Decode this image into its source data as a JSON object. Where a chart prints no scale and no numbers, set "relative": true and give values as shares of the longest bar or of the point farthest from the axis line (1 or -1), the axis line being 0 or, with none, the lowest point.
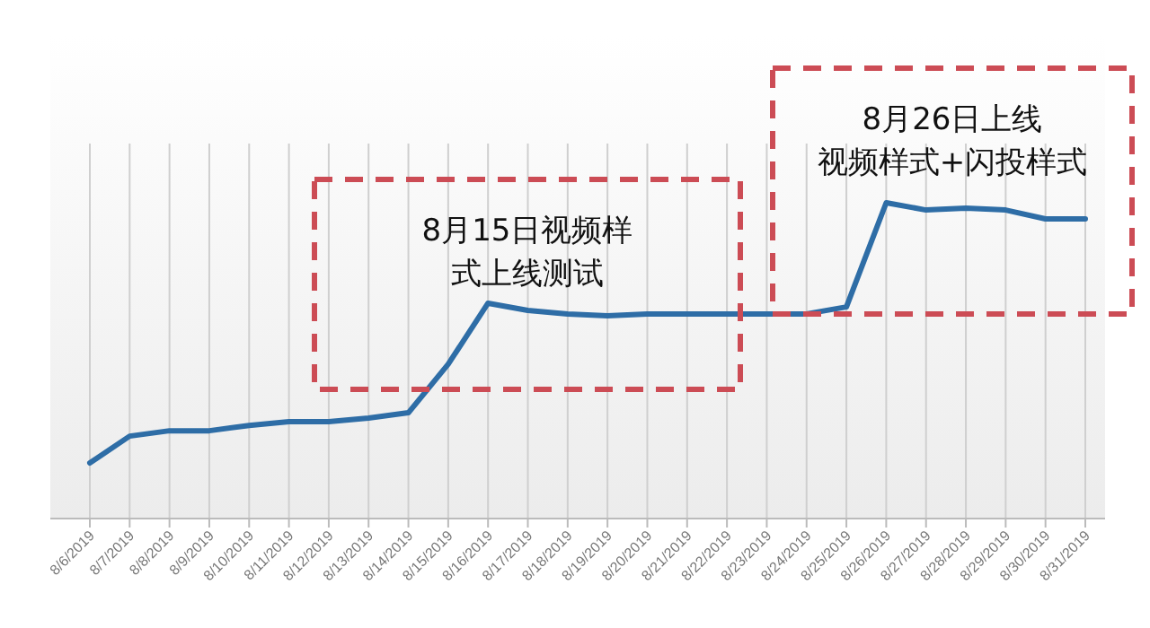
{
  "chart_data": {
    "type": "line",
    "relative": true,
    "grid": "x",
    "marker": "none",
    "line_style": "solid",
    "categories": [
      "8/6/2019",
      "8/7/2019",
      "8/8/2019",
      "8/9/2019",
      "8/10/2019",
      "8/11/2019",
      "8/12/2019",
      "8/13/2019",
      "8/14/2019",
      "8/15/2019",
      "8/16/2019",
      "8/17/2019",
      "8/18/2019",
      "8/19/2019",
      "8/20/2019",
      "8/21/2019",
      "8/22/2019",
      "8/23/2019",
      "8/24/2019",
      "8/25/2019",
      "8/26/2019",
      "8/27/2019",
      "8/28/2019",
      "8/29/2019",
      "8/30/2019",
      "8/31/2019"
    ],
    "series": [
      {
        "color": "#2e6da6",
        "values": [
          0.176,
          0.261,
          0.278,
          0.278,
          0.295,
          0.307,
          0.307,
          0.318,
          0.335,
          0.489,
          0.682,
          0.659,
          0.648,
          0.642,
          0.648,
          0.648,
          0.648,
          0.648,
          0.648,
          0.67,
          1.0,
          0.977,
          0.983,
          0.977,
          0.949,
          0.949
        ]
      }
    ],
    "annotations": [
      "8月15日视频样式上线测试",
      "8月26日上线视频样式+闪投样式"
    ]
  }
}
